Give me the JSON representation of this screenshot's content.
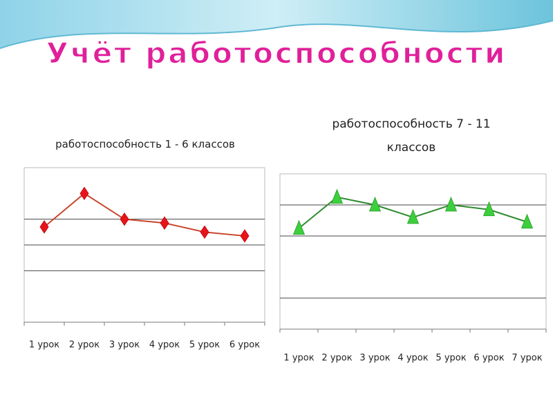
{
  "title": "Учёт работоспособности",
  "chart_data": [
    {
      "type": "line",
      "title": "работоспособность 1 - 6 классов",
      "categories": [
        "1 урок",
        "2 урок",
        "3 урок",
        "4 урок",
        "5 урок",
        "6 урок"
      ],
      "values": [
        3.7,
        5.0,
        4.0,
        3.85,
        3.5,
        3.35
      ],
      "color": "#e8141c",
      "line_color": "#c8462c",
      "marker": "diamond",
      "ylim": [
        0,
        6
      ],
      "yticks": [
        2,
        3,
        4
      ],
      "grid": true
    },
    {
      "type": "line",
      "title": "работоспособность 7 - 11 классов",
      "categories": [
        "1 урок",
        "2 урок",
        "3 урок",
        "4 урок",
        "5 урок",
        "6 урок",
        "7 урок"
      ],
      "values": [
        3.25,
        4.25,
        4.0,
        3.6,
        4.0,
        3.85,
        3.45
      ],
      "color": "#3ccf3c",
      "line_color": "#2e8b2e",
      "marker": "triangle",
      "ylim": [
        0,
        5
      ],
      "yticks": [
        1,
        3,
        4
      ],
      "grid": true
    }
  ]
}
